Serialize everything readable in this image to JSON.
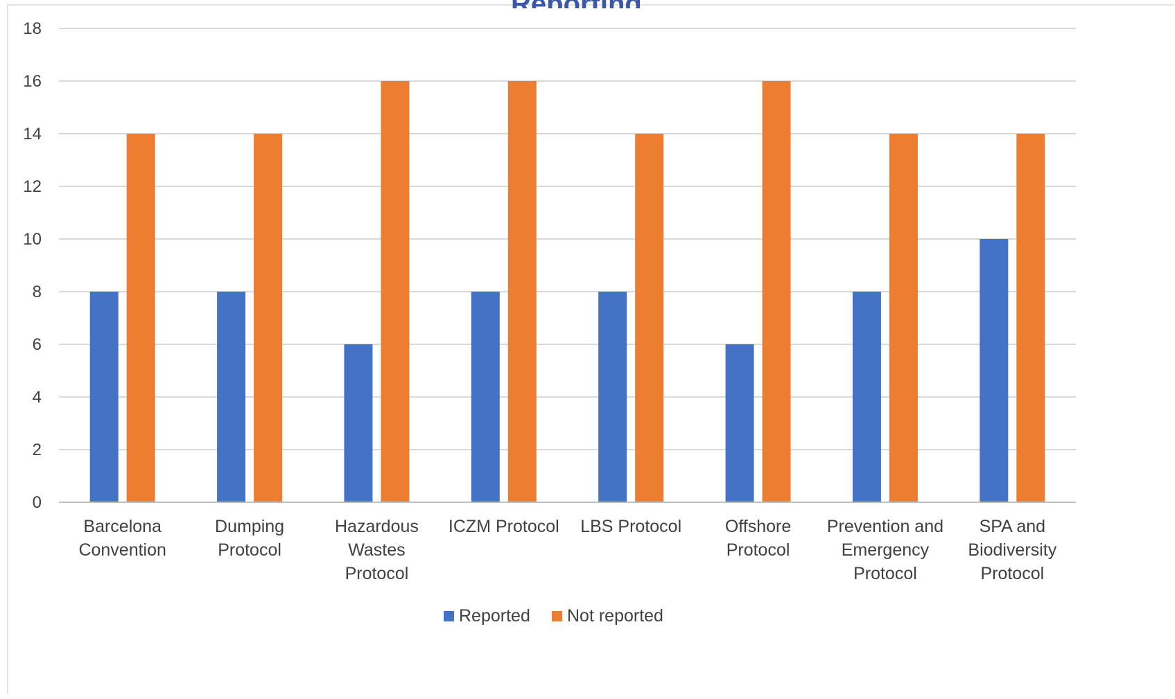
{
  "chart_data": {
    "type": "bar",
    "title": "",
    "xlabel": "",
    "ylabel": "",
    "ylim": [
      0,
      18
    ],
    "yticks": [
      0,
      2,
      4,
      6,
      8,
      10,
      12,
      14,
      16,
      18
    ],
    "grid": true,
    "legend_position": "bottom",
    "categories": [
      [
        "Barcelona",
        "Convention"
      ],
      [
        "Dumping",
        "Protocol"
      ],
      [
        "Hazardous",
        "Wastes",
        "Protocol"
      ],
      [
        "ICZM Protocol"
      ],
      [
        "LBS Protocol"
      ],
      [
        "Offshore",
        "Protocol"
      ],
      [
        "Prevention and",
        "Emergency",
        "Protocol"
      ],
      [
        "SPA and",
        "Biodiversity",
        "Protocol"
      ]
    ],
    "series": [
      {
        "name": "Reported",
        "color": "#4472c4",
        "values": [
          8,
          8,
          6,
          8,
          8,
          6,
          8,
          10
        ]
      },
      {
        "name": "Not reported",
        "color": "#ed7d31",
        "values": [
          14,
          14,
          16,
          16,
          14,
          16,
          14,
          14
        ]
      }
    ]
  }
}
